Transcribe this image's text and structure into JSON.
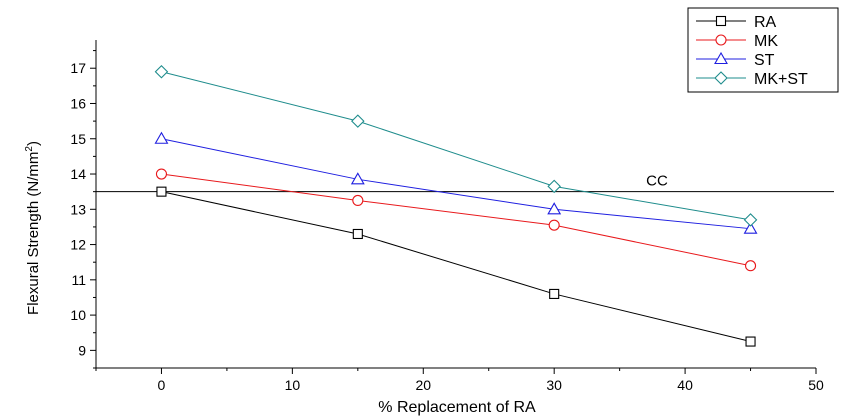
{
  "chart_data": {
    "type": "line",
    "title": "",
    "xlabel": "% Replacement of RA",
    "ylabel": "Flexural Strength (N/mm",
    "ylabel_sup": "2",
    "ylabel_close": ")",
    "xlim": [
      -5,
      50
    ],
    "ylim": [
      8.5,
      17.8
    ],
    "x_ticks": [
      0,
      10,
      20,
      30,
      40,
      50
    ],
    "y_ticks": [
      9,
      10,
      11,
      12,
      13,
      14,
      15,
      16,
      17
    ],
    "x": [
      0,
      15,
      30,
      45
    ],
    "series": [
      {
        "name": "RA",
        "values": [
          13.5,
          12.3,
          10.6,
          9.25
        ],
        "color": "#000000",
        "marker": "square"
      },
      {
        "name": "MK",
        "values": [
          14.0,
          13.25,
          12.55,
          11.4
        ],
        "color": "#e8191c",
        "marker": "circle"
      },
      {
        "name": "ST",
        "values": [
          15.0,
          13.85,
          13.0,
          12.45
        ],
        "color": "#1f1fe0",
        "marker": "triangle"
      },
      {
        "name": "MK+ST",
        "values": [
          16.9,
          15.5,
          13.65,
          12.7
        ],
        "color": "#1e8c8c",
        "marker": "diamond"
      }
    ],
    "reference_line": {
      "label": "CC",
      "value": 13.5
    },
    "grid": false,
    "legend_position": "top-right"
  }
}
